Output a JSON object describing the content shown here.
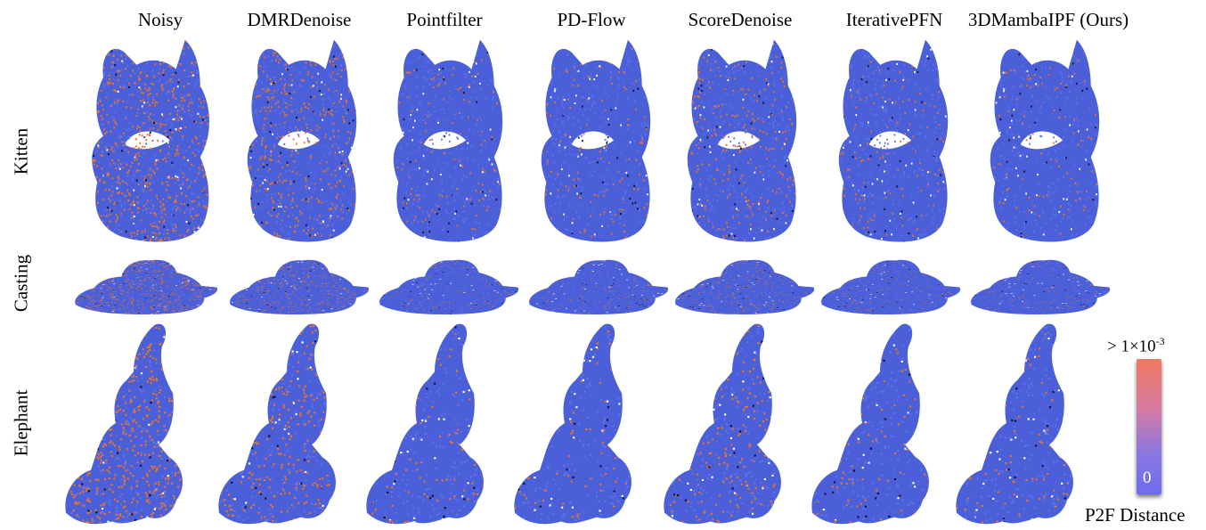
{
  "columns": [
    "Noisy",
    "DMRDenoise",
    "Pointfilter",
    "PD-Flow",
    "ScoreDenoise",
    "IterativePFN",
    "3DMambaIPF (Ours)"
  ],
  "rows": [
    "Kitten",
    "Casting",
    "Elephant"
  ],
  "colorbar": {
    "max_prefix": "> 1×10",
    "max_exp": "-3",
    "min_label": "0",
    "label": "P2F Distance",
    "colors": [
      "#f07860",
      "#d97aa0",
      "#8a78e0",
      "#6d6cf0"
    ]
  },
  "error_levels": [
    0.62,
    0.4,
    0.12,
    0.1,
    0.24,
    0.12,
    0.1
  ],
  "colors": {
    "surface": "#4a5fd8",
    "error": "#e8742c",
    "background": "#ffffff"
  }
}
